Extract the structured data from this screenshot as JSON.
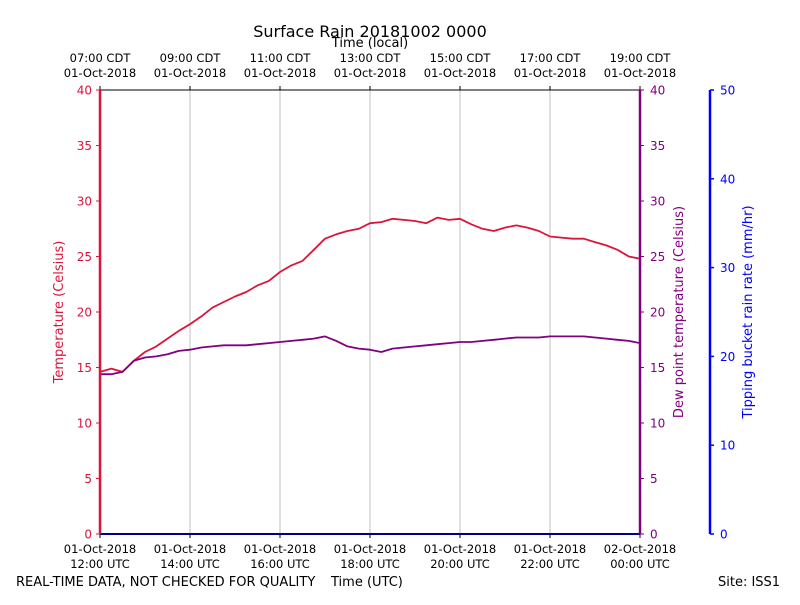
{
  "chart_data": {
    "type": "line",
    "title": "Surface Rain 20181002 0000",
    "top_axis_label": "Time (local)",
    "bottom_axis_label": "Time (UTC)",
    "x_range_hours": [
      0,
      12
    ],
    "time_ticks": [
      {
        "hour": 0,
        "utc": [
          "01-Oct-2018",
          "12:00 UTC"
        ],
        "local": [
          "07:00 CDT",
          "01-Oct-2018"
        ]
      },
      {
        "hour": 2,
        "utc": [
          "01-Oct-2018",
          "14:00 UTC"
        ],
        "local": [
          "09:00 CDT",
          "01-Oct-2018"
        ]
      },
      {
        "hour": 4,
        "utc": [
          "01-Oct-2018",
          "16:00 UTC"
        ],
        "local": [
          "11:00 CDT",
          "01-Oct-2018"
        ]
      },
      {
        "hour": 6,
        "utc": [
          "01-Oct-2018",
          "18:00 UTC"
        ],
        "local": [
          "13:00 CDT",
          "01-Oct-2018"
        ]
      },
      {
        "hour": 8,
        "utc": [
          "01-Oct-2018",
          "20:00 UTC"
        ],
        "local": [
          "15:00 CDT",
          "01-Oct-2018"
        ]
      },
      {
        "hour": 10,
        "utc": [
          "01-Oct-2018",
          "22:00 UTC"
        ],
        "local": [
          "17:00 CDT",
          "01-Oct-2018"
        ]
      },
      {
        "hour": 12,
        "utc": [
          "02-Oct-2018",
          "00:00 UTC"
        ],
        "local": [
          "19:00 CDT",
          "01-Oct-2018"
        ]
      }
    ],
    "left_axis": {
      "label": "Temperature (Celsius)",
      "color": "#dc143c",
      "ylim": [
        0,
        40
      ],
      "ticks": [
        0,
        5,
        10,
        15,
        20,
        25,
        30,
        35,
        40
      ]
    },
    "mid_axis": {
      "label": "Dew point temperature (Celsius)",
      "color": "#800080",
      "ylim": [
        0,
        40
      ],
      "ticks": [
        0,
        5,
        10,
        15,
        20,
        25,
        30,
        35,
        40
      ]
    },
    "right_axis": {
      "label": "Tipping bucket rain rate (mm/hr)",
      "color": "#0000ff",
      "ylim": [
        0,
        50
      ],
      "ticks": [
        0,
        10,
        20,
        30,
        40,
        50
      ]
    },
    "series": [
      {
        "name": "Temperature",
        "color": "#dc143c",
        "axis": "left",
        "x": [
          0,
          0.25,
          0.5,
          0.75,
          1.0,
          1.25,
          1.5,
          1.75,
          2.0,
          2.25,
          2.5,
          2.75,
          3.0,
          3.25,
          3.5,
          3.75,
          4.0,
          4.25,
          4.5,
          4.75,
          5.0,
          5.25,
          5.5,
          5.75,
          6.0,
          6.25,
          6.5,
          6.75,
          7.0,
          7.25,
          7.5,
          7.75,
          8.0,
          8.25,
          8.5,
          8.75,
          9.0,
          9.25,
          9.5,
          9.75,
          10.0,
          10.25,
          10.5,
          10.75,
          11.0,
          11.25,
          11.5,
          11.75,
          12.0
        ],
        "values": [
          14.6,
          14.9,
          14.6,
          15.6,
          16.4,
          16.9,
          17.6,
          18.3,
          18.9,
          19.6,
          20.4,
          20.9,
          21.4,
          21.8,
          22.4,
          22.8,
          23.6,
          24.2,
          24.6,
          25.6,
          26.6,
          27.0,
          27.3,
          27.5,
          28.0,
          28.1,
          28.4,
          28.3,
          28.2,
          28.0,
          28.5,
          28.3,
          28.4,
          27.9,
          27.5,
          27.3,
          27.6,
          27.8,
          27.6,
          27.3,
          26.8,
          26.7,
          26.6,
          26.6,
          26.3,
          26.0,
          25.6,
          25.0,
          24.8
        ]
      },
      {
        "name": "Dew point temperature",
        "color": "#800080",
        "axis": "mid",
        "x": [
          0,
          0.25,
          0.5,
          0.75,
          1.0,
          1.25,
          1.5,
          1.75,
          2.0,
          2.25,
          2.5,
          2.75,
          3.0,
          3.25,
          3.5,
          3.75,
          4.0,
          4.25,
          4.5,
          4.75,
          5.0,
          5.25,
          5.5,
          5.75,
          6.0,
          6.25,
          6.5,
          6.75,
          7.0,
          7.25,
          7.5,
          7.75,
          8.0,
          8.25,
          8.5,
          8.75,
          9.0,
          9.25,
          9.5,
          9.75,
          10.0,
          10.25,
          10.5,
          10.75,
          11.0,
          11.25,
          11.5,
          11.75,
          12.0
        ],
        "values": [
          14.4,
          14.4,
          14.6,
          15.6,
          15.9,
          16.0,
          16.2,
          16.5,
          16.6,
          16.8,
          16.9,
          17.0,
          17.0,
          17.0,
          17.1,
          17.2,
          17.3,
          17.4,
          17.5,
          17.6,
          17.8,
          17.4,
          16.9,
          16.7,
          16.6,
          16.4,
          16.7,
          16.8,
          16.9,
          17.0,
          17.1,
          17.2,
          17.3,
          17.3,
          17.4,
          17.5,
          17.6,
          17.7,
          17.7,
          17.7,
          17.8,
          17.8,
          17.8,
          17.8,
          17.7,
          17.6,
          17.5,
          17.4,
          17.2
        ]
      },
      {
        "name": "Tipping bucket rain rate",
        "color": "#00008b",
        "axis": "right",
        "x": [
          0,
          12
        ],
        "values": [
          0,
          0
        ]
      }
    ]
  },
  "footer": {
    "disclaimer": "REAL-TIME DATA, NOT CHECKED FOR QUALITY",
    "site": "Site: ISS1"
  }
}
